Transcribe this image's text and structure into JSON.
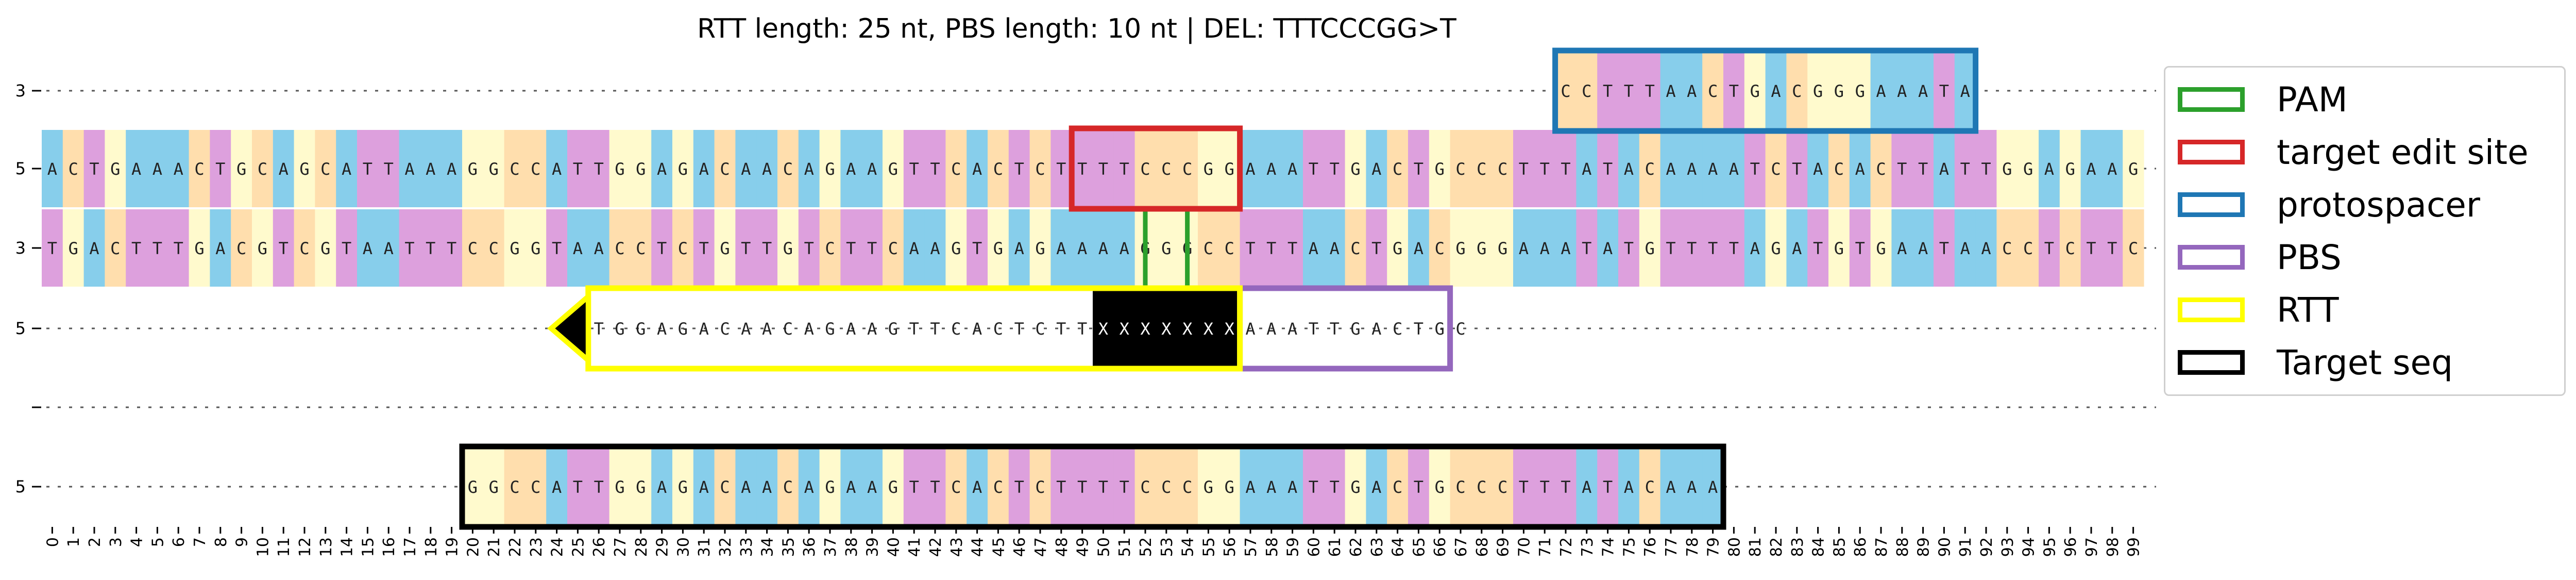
{
  "title": "RTT length: 25 nt, PBS length: 10 nt | DEL: TTTCCCGG>T",
  "base_colors": {
    "A": "#87ceeb",
    "C": "#ffdead",
    "G": "#fffacd",
    "T": "#dda0dd",
    "X": "#000000"
  },
  "tracks": [
    {
      "name": "protospacer-track",
      "label": "3",
      "start": 72,
      "seq": "CCTTTAACTGACGGGAAATA"
    },
    {
      "name": "top-strand-track",
      "label": "5",
      "start": 0,
      "seq": "ACTGAAACTGCAGCATTAAAGGCCATTGGAGACAACAGAAGTTCACTCTTTTCCCGGAAATTGACTGCCCTTTATACAAAATCTACACTTATTGGAGAAG"
    },
    {
      "name": "bottom-strand-track",
      "label": "3",
      "start": 0,
      "seq": "TGACTTTGACGTCGTAATTTCCGGTAACCTCTGTTGTCTTCAAGTGAGAAAAGGGCCTTTAACTGACGGGAAATATGTTTTAGATGTGAATAACCTCTTC"
    },
    {
      "name": "pegrna-extension-track",
      "label": "5",
      "start": 26,
      "seq": "TGGAGACAACAGAAGTTCACTCTTXXXXXXXAAATTGACTGC"
    },
    {
      "name": "target-seq-track",
      "label": "5",
      "start": 20,
      "seq": "GGCCATTGGAGACAACAGAAGTTCACTCTTTTCCCGGAAATTGACTGCCCTTTATACAAA"
    }
  ],
  "boxes": [
    {
      "name": "protospacer-box",
      "row": 0,
      "start": 72,
      "end": 91,
      "color": "#1f77b4"
    },
    {
      "name": "target-edit-site-box",
      "row": 1,
      "start": 49,
      "end": 56,
      "color": "#d62728"
    },
    {
      "name": "pbs-box",
      "row": 3,
      "start": 57,
      "end": 66,
      "color": "#9467bd"
    },
    {
      "name": "rtt-box",
      "row": 3,
      "start": 26,
      "end": 56,
      "color": "#ffff00"
    },
    {
      "name": "target-seq-box",
      "row": 4,
      "start": 20,
      "end": 79,
      "color": "#000000"
    }
  ],
  "pam": {
    "color": "#2ca02c",
    "start": 52,
    "end": 54
  },
  "legend": [
    {
      "label": "PAM",
      "color": "#2ca02c"
    },
    {
      "label": "target edit site",
      "color": "#d62728"
    },
    {
      "label": "protospacer",
      "color": "#1f77b4"
    },
    {
      "label": "PBS",
      "color": "#9467bd"
    },
    {
      "label": "RTT",
      "color": "#ffff00"
    },
    {
      "label": "Target seq",
      "color": "#000000"
    }
  ],
  "x_ticks": {
    "start": 0,
    "end": 99
  }
}
